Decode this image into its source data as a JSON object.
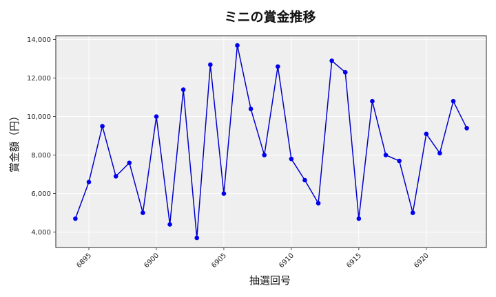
{
  "chart_data": {
    "type": "line",
    "title": "ミニの賞金推移",
    "xlabel": "抽選回号",
    "ylabel": "賞金額（円）",
    "x": [
      6894,
      6895,
      6896,
      6897,
      6898,
      6899,
      6900,
      6901,
      6902,
      6903,
      6904,
      6905,
      6906,
      6907,
      6908,
      6909,
      6910,
      6911,
      6912,
      6913,
      6914,
      6915,
      6916,
      6917,
      6918,
      6919,
      6920,
      6921,
      6922,
      6923
    ],
    "series": [
      {
        "values": [
          4700,
          6600,
          9500,
          6900,
          7600,
          5000,
          10000,
          4400,
          11400,
          3700,
          12700,
          6000,
          13700,
          10400,
          8000,
          12600,
          7800,
          6700,
          5500,
          12900,
          12300,
          4700,
          10800,
          8000,
          7700,
          5000,
          9100,
          8100,
          10800,
          9400
        ]
      }
    ],
    "xticks": [
      6895,
      6900,
      6905,
      6910,
      6915,
      6920
    ],
    "xtick_labels": [
      "6895",
      "6900",
      "6905",
      "6910",
      "6915",
      "6920"
    ],
    "yticks": [
      4000,
      6000,
      8000,
      10000,
      12000,
      14000
    ],
    "ytick_labels": [
      "4,000",
      "6,000",
      "8,000",
      "10,000",
      "12,000",
      "14,000"
    ],
    "xlim": [
      6892.55,
      6924.45
    ],
    "ylim": [
      3200,
      14200
    ],
    "grid": true,
    "colors": {
      "line": "#0000cc",
      "marker": "#0000ee",
      "plot_bg": "#efefef",
      "grid": "#ffffff"
    }
  }
}
